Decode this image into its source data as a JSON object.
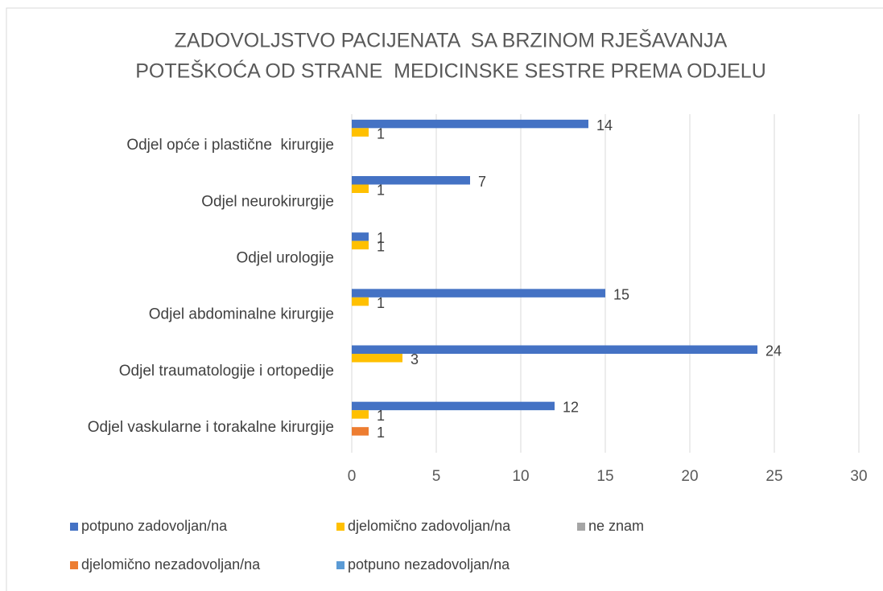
{
  "chart_data": {
    "type": "hbar",
    "title": [
      "ZADOVOLJSTVO PACIJENATA  SA BRZINOM RJEŠAVANJA",
      "POTEŠKOĆA OD STRANE  MEDICINSKE SESTRE PREMA ODJELU"
    ],
    "categories": [
      "Odjel opće i plastične  kirurgije",
      "Odjel neurokirurgije",
      "Odjel urologije",
      "Odjel abdominalne kirurgije",
      "Odjel traumatologije i ortopedije",
      "Odjel vaskularne i torakalne kirurgije"
    ],
    "series": [
      {
        "name": "potpuno zadovoljan/na",
        "color": "#4472c4",
        "values": [
          14,
          7,
          1,
          15,
          24,
          12
        ]
      },
      {
        "name": "djelomično zadovoljan/na",
        "color": "#ffc000",
        "values": [
          1,
          1,
          1,
          1,
          3,
          1
        ]
      },
      {
        "name": "ne znam",
        "color": "#a5a5a5",
        "values": [
          null,
          null,
          null,
          null,
          null,
          null
        ]
      },
      {
        "name": "djelomično nezadovoljan/na",
        "color": "#ed7d31",
        "values": [
          null,
          null,
          null,
          null,
          null,
          1
        ]
      },
      {
        "name": "potpuno nezadovoljan/na",
        "color": "#5b9bd5",
        "values": [
          null,
          null,
          null,
          null,
          null,
          null
        ]
      }
    ],
    "xlim": [
      0,
      30
    ],
    "xticks": [
      0,
      5,
      10,
      15,
      20,
      25,
      30
    ],
    "grid": true,
    "legend": "bottom"
  }
}
